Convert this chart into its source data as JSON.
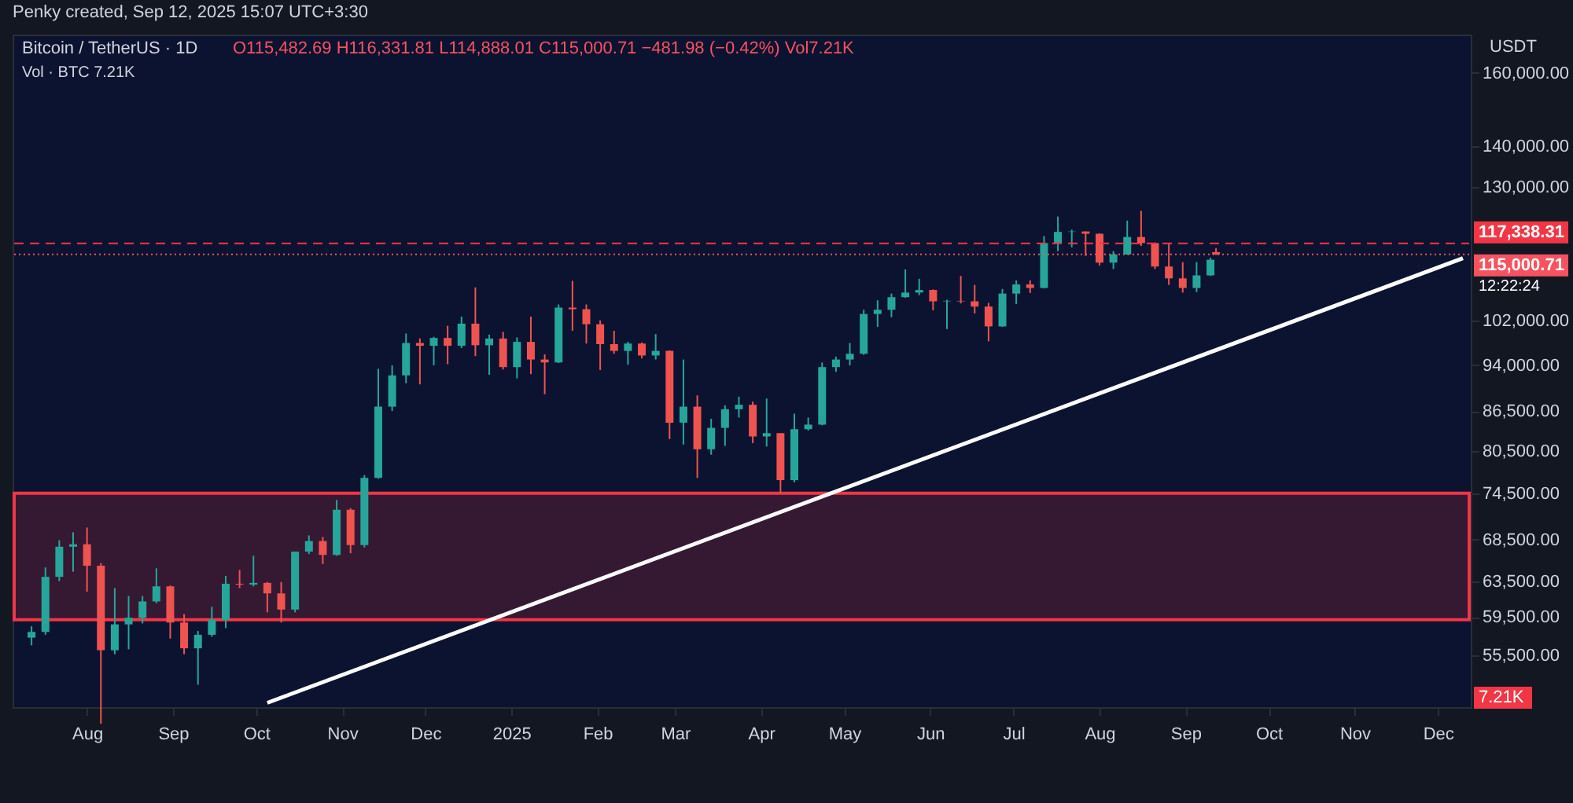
{
  "chart_data": {
    "type": "candlestick",
    "title": "Bitcoin / TetherUS · 1D",
    "subtitle": "O115,482.69 H116,331.81 L114,888.01 C115,000.71 −481.98 (−0.42%) Vol7.21K",
    "annotations": [
      "Penky created, Sep 12, 2025 15:07 UTC+3:30",
      "Vol · BTC 7.21K",
      "USDT",
      "12:22:24",
      "7.21K"
    ],
    "log": "y",
    "grid": false,
    "xlim": [
      "2024-07-08",
      "2025-12-10"
    ],
    "xticks": [
      {
        "value": "2024-08-01",
        "label": "Aug"
      },
      {
        "value": "2024-09-01",
        "label": "Sep"
      },
      {
        "value": "2024-10-01",
        "label": "Oct"
      },
      {
        "value": "2024-11-01",
        "label": "Nov"
      },
      {
        "value": "2024-12-01",
        "label": "Dec"
      },
      {
        "value": "2025-01-01",
        "label": "2025"
      },
      {
        "value": "2025-02-01",
        "label": "Feb"
      },
      {
        "value": "2025-03-01",
        "label": "Mar"
      },
      {
        "value": "2025-04-01",
        "label": "Apr"
      },
      {
        "value": "2025-05-01",
        "label": "May"
      },
      {
        "value": "2025-06-01",
        "label": "Jun"
      },
      {
        "value": "2025-07-01",
        "label": "Jul"
      },
      {
        "value": "2025-08-01",
        "label": "Aug"
      },
      {
        "value": "2025-09-01",
        "label": "Sep"
      },
      {
        "value": "2025-10-01",
        "label": "Oct"
      },
      {
        "value": "2025-11-01",
        "label": "Nov"
      },
      {
        "value": "2025-12-01",
        "label": "Dec"
      }
    ],
    "ylim": [
      50500,
      171500
    ],
    "yticks": [
      {
        "value": 55500,
        "label": "55,500.00"
      },
      {
        "value": 59500,
        "label": "59,500.00"
      },
      {
        "value": 63500,
        "label": "63,500.00"
      },
      {
        "value": 68500,
        "label": "68,500.00"
      },
      {
        "value": 74500,
        "label": "74,500.00"
      },
      {
        "value": 80500,
        "label": "80,500.00"
      },
      {
        "value": 86500,
        "label": "86,500.00"
      },
      {
        "value": 94000,
        "label": "94,000.00"
      },
      {
        "value": 102000,
        "label": "102,000.00"
      },
      {
        "value": 130000,
        "label": "130,000.00"
      },
      {
        "value": 140000,
        "label": "140,000.00"
      },
      {
        "value": 160000,
        "label": "160,000.00"
      }
    ],
    "x": [
      "2024-07-12",
      "2024-07-17",
      "2024-07-22",
      "2024-07-27",
      "2024-08-01",
      "2024-08-06",
      "2024-08-11",
      "2024-08-16",
      "2024-08-21",
      "2024-08-26",
      "2024-08-31",
      "2024-09-05",
      "2024-09-10",
      "2024-09-15",
      "2024-09-20",
      "2024-09-25",
      "2024-09-30",
      "2024-10-05",
      "2024-10-10",
      "2024-10-15",
      "2024-10-20",
      "2024-10-25",
      "2024-10-30",
      "2024-11-04",
      "2024-11-09",
      "2024-11-14",
      "2024-11-19",
      "2024-11-24",
      "2024-11-29",
      "2024-12-04",
      "2024-12-09",
      "2024-12-14",
      "2024-12-19",
      "2024-12-24",
      "2024-12-29",
      "2025-01-03",
      "2025-01-08",
      "2025-01-13",
      "2025-01-18",
      "2025-01-23",
      "2025-01-28",
      "2025-02-02",
      "2025-02-07",
      "2025-02-12",
      "2025-02-17",
      "2025-02-22",
      "2025-02-27",
      "2025-03-04",
      "2025-03-09",
      "2025-03-14",
      "2025-03-19",
      "2025-03-24",
      "2025-03-29",
      "2025-04-03",
      "2025-04-08",
      "2025-04-13",
      "2025-04-18",
      "2025-04-23",
      "2025-04-28",
      "2025-05-03",
      "2025-05-08",
      "2025-05-13",
      "2025-05-18",
      "2025-05-23",
      "2025-05-28",
      "2025-06-02",
      "2025-06-07",
      "2025-06-12",
      "2025-06-17",
      "2025-06-22",
      "2025-06-27",
      "2025-07-02",
      "2025-07-07",
      "2025-07-12",
      "2025-07-17",
      "2025-07-22",
      "2025-07-27",
      "2025-08-01",
      "2025-08-06",
      "2025-08-11",
      "2025-08-16",
      "2025-08-21",
      "2025-08-26",
      "2025-08-31",
      "2025-09-05",
      "2025-09-10",
      "2025-09-12"
    ],
    "ohlc": [
      [
        57300,
        58500,
        56500,
        57900
      ],
      [
        57900,
        65100,
        57600,
        64000
      ],
      [
        64000,
        68400,
        63500,
        67600
      ],
      [
        67600,
        69400,
        64600,
        67900
      ],
      [
        67900,
        70000,
        62300,
        65300
      ],
      [
        65300,
        65600,
        49000,
        56000
      ],
      [
        56000,
        62700,
        55600,
        58700
      ],
      [
        58700,
        61800,
        56100,
        59400
      ],
      [
        59400,
        61800,
        58800,
        61200
      ],
      [
        61200,
        65000,
        61000,
        62900
      ],
      [
        62900,
        63000,
        57200,
        58900
      ],
      [
        58900,
        59800,
        55600,
        56200
      ],
      [
        56200,
        58000,
        52600,
        57600
      ],
      [
        57600,
        60600,
        57400,
        59200
      ],
      [
        59200,
        64100,
        58300,
        63200
      ],
      [
        63200,
        64800,
        62700,
        63100
      ],
      [
        63100,
        66500,
        62900,
        63300
      ],
      [
        63300,
        63400,
        60000,
        62100
      ],
      [
        62100,
        63400,
        58900,
        60300
      ],
      [
        60300,
        67000,
        60000,
        67000
      ],
      [
        67000,
        69000,
        66700,
        68300
      ],
      [
        68300,
        68800,
        65500,
        66600
      ],
      [
        66600,
        73600,
        66500,
        72300
      ],
      [
        72300,
        72500,
        66800,
        67800
      ],
      [
        67800,
        77000,
        67500,
        76600
      ],
      [
        76600,
        93400,
        76500,
        87200
      ],
      [
        87200,
        94000,
        86500,
        92300
      ],
      [
        92300,
        99600,
        91000,
        97900
      ],
      [
        97900,
        98700,
        90800,
        97400
      ],
      [
        97400,
        99000,
        94000,
        98800
      ],
      [
        98800,
        101000,
        94200,
        97400
      ],
      [
        97400,
        102700,
        97000,
        101400
      ],
      [
        101400,
        108300,
        95600,
        97500
      ],
      [
        97500,
        99400,
        92400,
        98700
      ],
      [
        98700,
        99900,
        93300,
        93700
      ],
      [
        93700,
        98900,
        91800,
        98100
      ],
      [
        98100,
        102700,
        92500,
        95000
      ],
      [
        95000,
        95900,
        89200,
        94500
      ],
      [
        94500,
        105000,
        94400,
        104400
      ],
      [
        104400,
        109600,
        100100,
        104100
      ],
      [
        104100,
        105000,
        97800,
        101300
      ],
      [
        101300,
        102000,
        93200,
        97700
      ],
      [
        97700,
        100100,
        96000,
        96500
      ],
      [
        96500,
        98100,
        94100,
        97800
      ],
      [
        97800,
        98000,
        95200,
        95700
      ],
      [
        95700,
        99500,
        95000,
        96500
      ],
      [
        96500,
        96600,
        82200,
        84700
      ],
      [
        84700,
        95000,
        81400,
        87200
      ],
      [
        87200,
        89000,
        76600,
        80700
      ],
      [
        80700,
        85300,
        79900,
        83900
      ],
      [
        83900,
        87400,
        81200,
        86800
      ],
      [
        86800,
        88800,
        85500,
        87500
      ],
      [
        87500,
        88000,
        81600,
        82600
      ],
      [
        82600,
        88500,
        81100,
        83100
      ],
      [
        83100,
        83100,
        74500,
        76300
      ],
      [
        76300,
        86100,
        76000,
        83700
      ],
      [
        83700,
        85500,
        83500,
        84400
      ],
      [
        84400,
        94500,
        84300,
        93700
      ],
      [
        93700,
        95500,
        92900,
        95000
      ],
      [
        95000,
        97900,
        94000,
        96000
      ],
      [
        96000,
        104000,
        95800,
        103200
      ],
      [
        103200,
        105800,
        100800,
        104000
      ],
      [
        104000,
        107100,
        102600,
        106400
      ],
      [
        106400,
        111900,
        106300,
        107300
      ],
      [
        107300,
        110000,
        106800,
        107800
      ],
      [
        107800,
        107900,
        103900,
        105600
      ],
      [
        105600,
        105900,
        100400,
        105700
      ],
      [
        105700,
        110600,
        105200,
        105600
      ],
      [
        105600,
        108800,
        103300,
        104600
      ],
      [
        104600,
        105300,
        98200,
        100900
      ],
      [
        100900,
        108000,
        100800,
        107100
      ],
      [
        107100,
        109700,
        105100,
        108900
      ],
      [
        108900,
        109700,
        107200,
        108200
      ],
      [
        108200,
        118900,
        108100,
        117400
      ],
      [
        117400,
        123200,
        115700,
        119800
      ],
      [
        119800,
        120300,
        116500,
        119900
      ],
      [
        119900,
        119900,
        114700,
        119400
      ],
      [
        119400,
        119500,
        112700,
        113300
      ],
      [
        113300,
        115700,
        112000,
        115000
      ],
      [
        115000,
        122300,
        114900,
        118700
      ],
      [
        118700,
        124500,
        116800,
        117400
      ],
      [
        117400,
        117500,
        112000,
        112500
      ],
      [
        112500,
        117400,
        108800,
        110100
      ],
      [
        110100,
        113400,
        107300,
        108200
      ],
      [
        108200,
        113400,
        107400,
        110700
      ],
      [
        110700,
        114300,
        110600,
        113900
      ],
      [
        115482.69,
        116331.81,
        114888.01,
        115000.71
      ]
    ],
    "colors": [
      "#26a69a",
      "#26a69a",
      "#26a69a",
      "#26a69a",
      "#ef5350",
      "#ef5350",
      "#26a69a",
      "#26a69a",
      "#26a69a",
      "#26a69a",
      "#ef5350",
      "#ef5350",
      "#26a69a",
      "#26a69a",
      "#26a69a",
      "#ef5350",
      "#26a69a",
      "#ef5350",
      "#ef5350",
      "#26a69a",
      "#26a69a",
      "#ef5350",
      "#26a69a",
      "#ef5350",
      "#26a69a",
      "#26a69a",
      "#26a69a",
      "#26a69a",
      "#ef5350",
      "#26a69a",
      "#ef5350",
      "#26a69a",
      "#ef5350",
      "#26a69a",
      "#ef5350",
      "#26a69a",
      "#ef5350",
      "#ef5350",
      "#26a69a",
      "#ef5350",
      "#ef5350",
      "#ef5350",
      "#ef5350",
      "#26a69a",
      "#ef5350",
      "#26a69a",
      "#ef5350",
      "#26a69a",
      "#ef5350",
      "#26a69a",
      "#26a69a",
      "#26a69a",
      "#ef5350",
      "#26a69a",
      "#ef5350",
      "#26a69a",
      "#26a69a",
      "#26a69a",
      "#26a69a",
      "#26a69a",
      "#26a69a",
      "#26a69a",
      "#26a69a",
      "#26a69a",
      "#26a69a",
      "#ef5350",
      "#26a69a",
      "#ef5350",
      "#ef5350",
      "#ef5350",
      "#26a69a",
      "#26a69a",
      "#ef5350",
      "#26a69a",
      "#26a69a",
      "#26a69a",
      "#ef5350",
      "#ef5350",
      "#26a69a",
      "#26a69a",
      "#ef5350",
      "#ef5350",
      "#ef5350",
      "#ef5350",
      "#26a69a",
      "#26a69a",
      "#ef5350"
    ],
    "series": [
      {
        "type": "line",
        "color": "#ffffff",
        "x": [
          "2024-10-05",
          "2025-12-10"
        ],
        "values": [
          50900,
          114200
        ]
      }
    ],
    "ref_lines": [
      {
        "axis": "y",
        "value": 117338.31,
        "label": "117,338.31",
        "color": "#f23645",
        "line_style": "dashed"
      },
      {
        "axis": "y",
        "value": 115000.71,
        "label": "115,000.71",
        "color": "#f7525f",
        "line_style": "dotted"
      }
    ],
    "bands": [
      {
        "axis": "y",
        "from": 59200,
        "to": 74500,
        "color": "#f23645"
      }
    ]
  }
}
